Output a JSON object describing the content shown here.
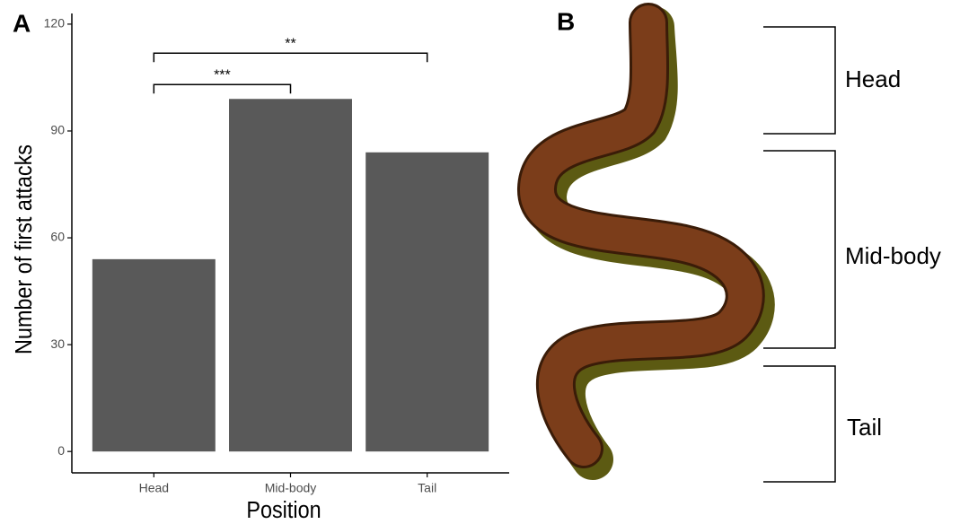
{
  "chart_data": {
    "type": "bar",
    "panel_label": "A",
    "x_label": "Position",
    "y_label": "Number of first attacks",
    "categories": [
      "Head",
      "Mid-body",
      "Tail"
    ],
    "values": [
      54,
      99,
      84
    ],
    "color": "#595959",
    "ylim": [
      -6,
      123
    ],
    "yticks": [
      0,
      30,
      60,
      90,
      120
    ],
    "grid": false,
    "annotations": [
      {
        "text": "***",
        "from": "Head",
        "to": "Mid-body"
      },
      {
        "text": "**",
        "from": "Head",
        "to": "Tail"
      }
    ]
  },
  "figure_b": {
    "panel_label": "B",
    "labels": [
      "Head",
      "Mid-body",
      "Tail"
    ]
  }
}
